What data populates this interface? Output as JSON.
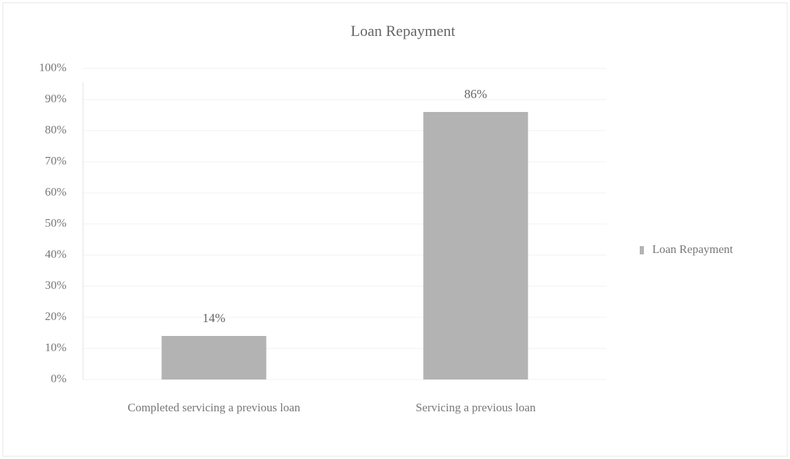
{
  "chart_data": {
    "type": "bar",
    "title": "Loan Repayment",
    "categories": [
      "Completed servicing a previous loan",
      "Servicing a previous loan"
    ],
    "series": [
      {
        "name": "Loan Repayment",
        "color": "#b3b3b3",
        "values": [
          14,
          86
        ],
        "value_labels": [
          "14%",
          "86%"
        ]
      }
    ],
    "ylim": [
      0,
      100
    ],
    "yticks": [
      {
        "value": 0,
        "label": "0%"
      },
      {
        "value": 10,
        "label": "10%"
      },
      {
        "value": 20,
        "label": "20%"
      },
      {
        "value": 30,
        "label": "30%"
      },
      {
        "value": 40,
        "label": "40%"
      },
      {
        "value": 50,
        "label": "50%"
      },
      {
        "value": 60,
        "label": "60%"
      },
      {
        "value": 70,
        "label": "70%"
      },
      {
        "value": 80,
        "label": "80%"
      },
      {
        "value": 90,
        "label": "90%"
      },
      {
        "value": 100,
        "label": "100%"
      }
    ],
    "grid": true,
    "legend": "right"
  }
}
